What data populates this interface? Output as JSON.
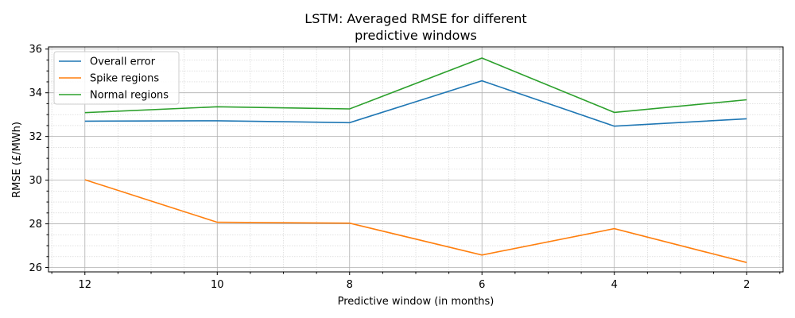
{
  "chart_data": {
    "type": "line",
    "title_line1": "LSTM: Averaged RMSE for different",
    "title_line2": "predictive windows",
    "xlabel": "Predictive window (in months)",
    "ylabel": "RMSE (£/MWh)",
    "x": [
      12,
      10,
      8,
      6,
      4,
      2
    ],
    "x_tick_labels": [
      "12",
      "10",
      "8",
      "6",
      "4",
      "2"
    ],
    "x_inverted": true,
    "xlim": [
      12.55,
      1.45
    ],
    "ylim": [
      25.8,
      36.1
    ],
    "y_ticks": [
      26,
      28,
      30,
      32,
      34,
      36
    ],
    "y_tick_labels": [
      "26",
      "28",
      "30",
      "32",
      "34",
      "36"
    ],
    "grid": "major and minor",
    "legend_position": "upper-left",
    "series": [
      {
        "name": "Overall error",
        "color": "#1f77b4",
        "values": [
          32.7,
          32.72,
          32.63,
          34.55,
          32.47,
          32.81
        ]
      },
      {
        "name": "Spike regions",
        "color": "#ff7f0e",
        "values": [
          30.02,
          28.07,
          28.03,
          26.57,
          27.78,
          26.23
        ]
      },
      {
        "name": "Normal regions",
        "color": "#2ca02c",
        "values": [
          33.09,
          33.36,
          33.26,
          35.59,
          33.1,
          33.68
        ]
      }
    ]
  }
}
